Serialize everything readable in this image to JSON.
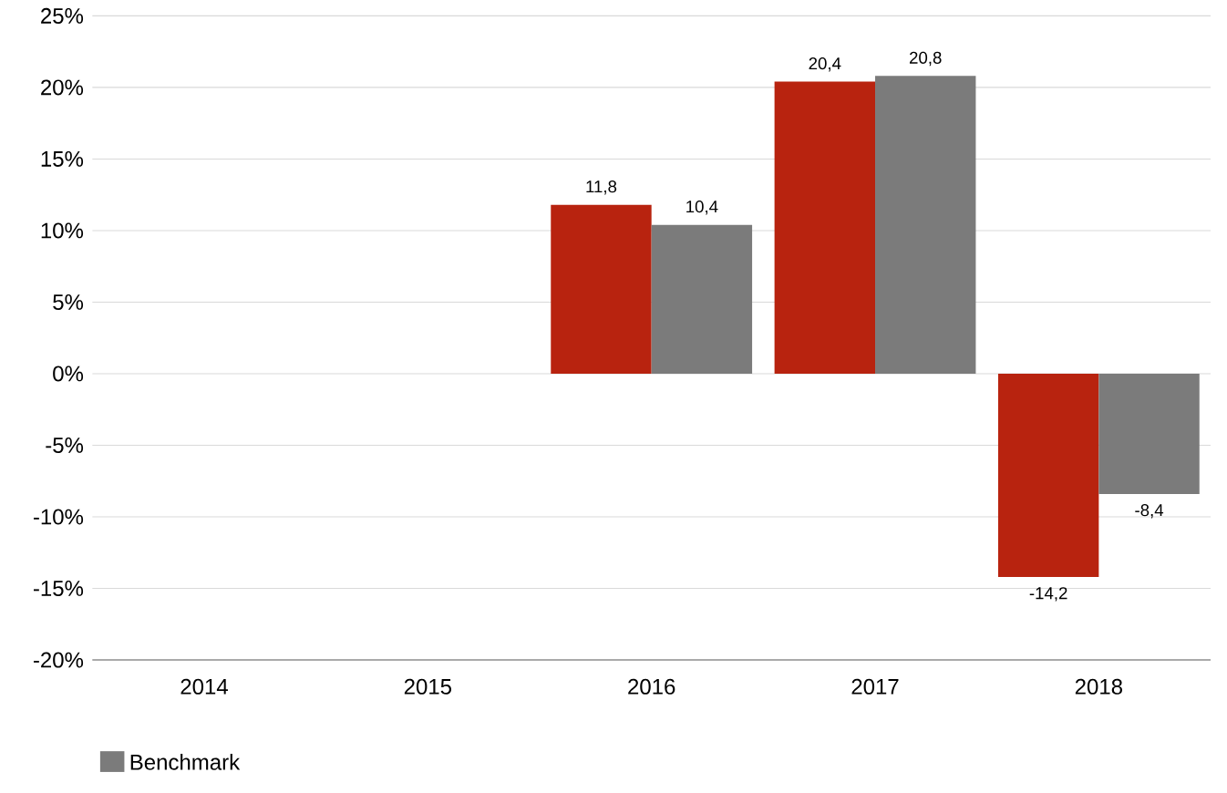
{
  "chart_data": {
    "type": "bar",
    "categories": [
      "2014",
      "2015",
      "2016",
      "2017",
      "2018"
    ],
    "series": [
      {
        "color": "#b8230f",
        "values": [
          null,
          null,
          11.8,
          20.4,
          -14.2
        ],
        "value_labels": [
          null,
          null,
          "11,8",
          "20,4",
          "-14,2"
        ]
      },
      {
        "name": "Benchmark",
        "color": "#7b7b7b",
        "values": [
          null,
          null,
          10.4,
          20.8,
          -8.4
        ],
        "value_labels": [
          null,
          null,
          "10,4",
          "20,8",
          "-8,4"
        ]
      }
    ],
    "ylim": [
      -20,
      25
    ],
    "yticks": [
      {
        "value": -20,
        "label": "-20%"
      },
      {
        "value": -15,
        "label": "-15%"
      },
      {
        "value": -10,
        "label": "-10%"
      },
      {
        "value": -5,
        "label": "-5%"
      },
      {
        "value": 0,
        "label": "0%"
      },
      {
        "value": 5,
        "label": "5%"
      },
      {
        "value": 10,
        "label": "10%"
      },
      {
        "value": 15,
        "label": "15%"
      },
      {
        "value": 20,
        "label": "20%"
      },
      {
        "value": 25,
        "label": "25%"
      }
    ],
    "grid": "y",
    "legend": "bottom left"
  }
}
